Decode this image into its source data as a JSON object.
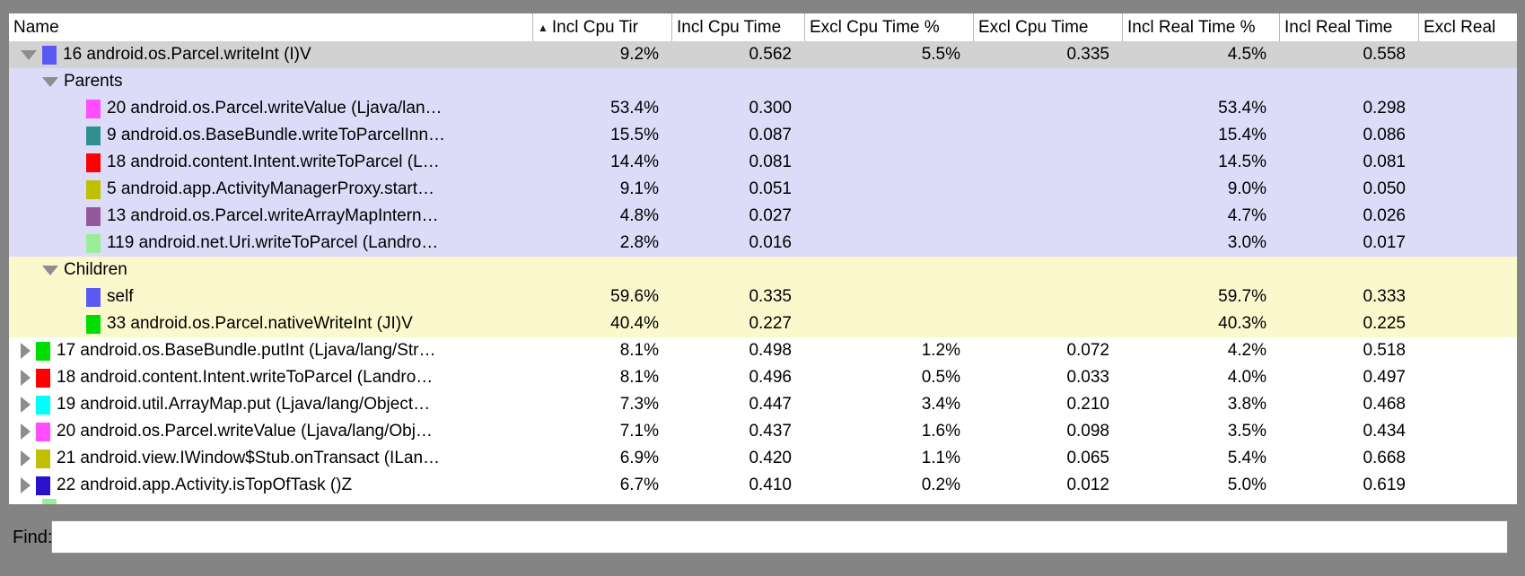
{
  "window": {
    "frame_color": "#848484"
  },
  "table": {
    "columns": [
      {
        "label": "Name",
        "sort": null
      },
      {
        "label": "Incl Cpu Tir",
        "sort": "asc"
      },
      {
        "label": "Incl Cpu Time",
        "sort": null
      },
      {
        "label": "Excl Cpu Time %",
        "sort": null
      },
      {
        "label": "Excl Cpu Time",
        "sort": null
      },
      {
        "label": "Incl Real Time %",
        "sort": null
      },
      {
        "label": "Incl Real Time",
        "sort": null
      },
      {
        "label": "Excl Real",
        "sort": null
      }
    ],
    "row_backgrounds": {
      "selected": "#d2d2d2",
      "parents": "#dcdbf8",
      "children": "#fbf8cd",
      "plain": "#ffffff"
    },
    "rows": [
      {
        "name": "16 android.os.Parcel.writeInt (I)V",
        "level": 0,
        "expander": "expanded",
        "square": "#5a5af2",
        "bg": "selected",
        "values": [
          "9.2%",
          "0.562",
          "5.5%",
          "0.335",
          "4.5%",
          "0.558",
          ""
        ]
      },
      {
        "name": "Parents",
        "level": 1,
        "expander": "expanded",
        "square": null,
        "bg": "parents",
        "values": [
          "",
          "",
          "",
          "",
          "",
          "",
          ""
        ]
      },
      {
        "name": "20 android.os.Parcel.writeValue (Ljava/lan…",
        "level": 2,
        "expander": null,
        "square": "#ff4dff",
        "bg": "parents",
        "values": [
          "53.4%",
          "0.300",
          "",
          "",
          "53.4%",
          "0.298",
          ""
        ]
      },
      {
        "name": "9 android.os.BaseBundle.writeToParcelInn…",
        "level": 2,
        "expander": null,
        "square": "#2f9090",
        "bg": "parents",
        "values": [
          "15.5%",
          "0.087",
          "",
          "",
          "15.4%",
          "0.086",
          ""
        ]
      },
      {
        "name": "18 android.content.Intent.writeToParcel (L…",
        "level": 2,
        "expander": null,
        "square": "#ff0000",
        "bg": "parents",
        "values": [
          "14.4%",
          "0.081",
          "",
          "",
          "14.5%",
          "0.081",
          ""
        ]
      },
      {
        "name": "5 android.app.ActivityManagerProxy.start…",
        "level": 2,
        "expander": null,
        "square": "#c0c000",
        "bg": "parents",
        "values": [
          "9.1%",
          "0.051",
          "",
          "",
          "9.0%",
          "0.050",
          ""
        ]
      },
      {
        "name": "13 android.os.Parcel.writeArrayMapIntern…",
        "level": 2,
        "expander": null,
        "square": "#94599c",
        "bg": "parents",
        "values": [
          "4.8%",
          "0.027",
          "",
          "",
          "4.7%",
          "0.026",
          ""
        ]
      },
      {
        "name": "119 android.net.Uri.writeToParcel (Landro…",
        "level": 2,
        "expander": null,
        "square": "#99ee99",
        "bg": "parents",
        "values": [
          "2.8%",
          "0.016",
          "",
          "",
          "3.0%",
          "0.017",
          ""
        ]
      },
      {
        "name": "Children",
        "level": 1,
        "expander": "expanded",
        "square": null,
        "bg": "children",
        "values": [
          "",
          "",
          "",
          "",
          "",
          "",
          ""
        ]
      },
      {
        "name": "self",
        "level": 2,
        "expander": null,
        "square": "#5a5af2",
        "bg": "children",
        "values": [
          "59.6%",
          "0.335",
          "",
          "",
          "59.7%",
          "0.333",
          ""
        ]
      },
      {
        "name": "33 android.os.Parcel.nativeWriteInt (JI)V",
        "level": 2,
        "expander": null,
        "square": "#00dd00",
        "bg": "children",
        "values": [
          "40.4%",
          "0.227",
          "",
          "",
          "40.3%",
          "0.225",
          ""
        ]
      },
      {
        "name": "17 android.os.BaseBundle.putInt (Ljava/lang/Str…",
        "level": 0,
        "expander": "collapsed",
        "square": "#00dd00",
        "bg": "plain",
        "values": [
          "8.1%",
          "0.498",
          "1.2%",
          "0.072",
          "4.2%",
          "0.518",
          ""
        ]
      },
      {
        "name": "18 android.content.Intent.writeToParcel (Landro…",
        "level": 0,
        "expander": "collapsed",
        "square": "#ff0000",
        "bg": "plain",
        "values": [
          "8.1%",
          "0.496",
          "0.5%",
          "0.033",
          "4.0%",
          "0.497",
          ""
        ]
      },
      {
        "name": "19 android.util.ArrayMap.put (Ljava/lang/Object…",
        "level": 0,
        "expander": "collapsed",
        "square": "#00ffff",
        "bg": "plain",
        "values": [
          "7.3%",
          "0.447",
          "3.4%",
          "0.210",
          "3.8%",
          "0.468",
          ""
        ]
      },
      {
        "name": "20 android.os.Parcel.writeValue (Ljava/lang/Obj…",
        "level": 0,
        "expander": "collapsed",
        "square": "#ff4dff",
        "bg": "plain",
        "values": [
          "7.1%",
          "0.437",
          "1.6%",
          "0.098",
          "3.5%",
          "0.434",
          ""
        ]
      },
      {
        "name": "21 android.view.IWindow$Stub.onTransact (ILan…",
        "level": 0,
        "expander": "collapsed",
        "square": "#c0c000",
        "bg": "plain",
        "values": [
          "6.9%",
          "0.420",
          "1.1%",
          "0.065",
          "5.4%",
          "0.668",
          ""
        ]
      },
      {
        "name": "22 android.app.Activity.isTopOfTask ()Z",
        "level": 0,
        "expander": "collapsed",
        "square": "#2b10cc",
        "bg": "plain",
        "values": [
          "6.7%",
          "0.410",
          "0.2%",
          "0.012",
          "5.0%",
          "0.619",
          ""
        ]
      }
    ],
    "partial_row_square": "#99ee99"
  },
  "find": {
    "label": "Find:",
    "value": ""
  }
}
